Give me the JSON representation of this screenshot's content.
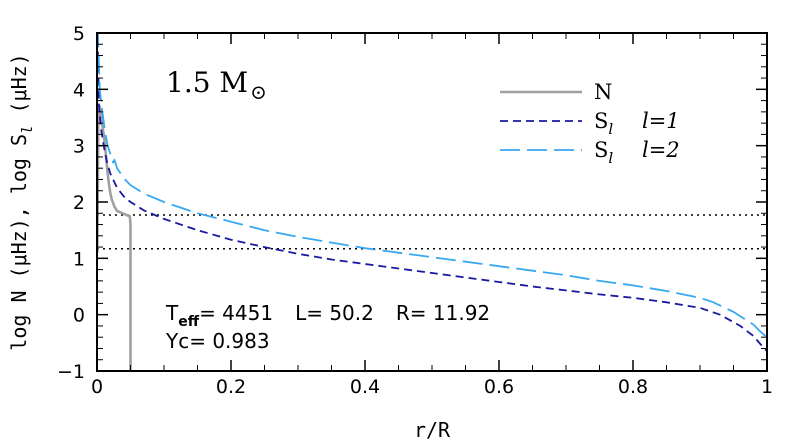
{
  "chart_data": {
    "type": "line",
    "title": "",
    "xlabel": "r/R",
    "ylabel": "log N (μHz), log S",
    "ylabel_subscript": "l",
    "ylabel_suffix": " (μHz)",
    "xlim": [
      0,
      1
    ],
    "ylim": [
      -1,
      5
    ],
    "xticks": [
      0,
      0.2,
      0.4,
      0.6,
      0.8,
      1
    ],
    "xtick_labels": [
      "0",
      "0.2",
      "0.4",
      "0.6",
      "0.8",
      "1"
    ],
    "yticks": [
      -1,
      0,
      1,
      2,
      3,
      4,
      5
    ],
    "ytick_labels": [
      "−1",
      "0",
      "1",
      "2",
      "3",
      "4",
      "5"
    ],
    "grid": false,
    "legend_position": "top-right",
    "mass_label": "1.5  M",
    "mass_symbol": "⊙",
    "stellar_params": {
      "teff_label": "T",
      "teff_sub": "eff",
      "teff_value": "= 4451",
      "lum": "L= 50.2",
      "radius": "R= 11.92",
      "yc": "Yc= 0.983"
    },
    "reference_lines": [
      1.77,
      1.17
    ],
    "series": [
      {
        "name": "N",
        "legend_name": "N",
        "legend_degree": "",
        "color": "#a0a0a0",
        "style": "solid",
        "x": [
          0.0005,
          0.002,
          0.004,
          0.006,
          0.008,
          0.01,
          0.012,
          0.014,
          0.016,
          0.018,
          0.02,
          0.022,
          0.024,
          0.026,
          0.028,
          0.03,
          0.034,
          0.038,
          0.042,
          0.046,
          0.049,
          0.05,
          0.05,
          0.05
        ],
        "y": [
          1.1,
          3.4,
          3.7,
          3.55,
          3.35,
          3.2,
          3.0,
          2.75,
          2.5,
          2.3,
          2.15,
          2.05,
          1.98,
          1.92,
          1.88,
          1.84,
          1.82,
          1.8,
          1.78,
          1.76,
          1.75,
          1.6,
          0.5,
          -1
        ]
      },
      {
        "name": "S_l l=1",
        "legend_name": "S",
        "legend_sub": "l",
        "legend_degree": "l=1",
        "color": "#1a1aa0",
        "style": "dashed",
        "x": [
          0.001,
          0.003,
          0.006,
          0.01,
          0.015,
          0.02,
          0.03,
          0.04,
          0.05,
          0.07,
          0.1,
          0.15,
          0.2,
          0.25,
          0.3,
          0.35,
          0.4,
          0.45,
          0.5,
          0.55,
          0.6,
          0.65,
          0.7,
          0.75,
          0.8,
          0.85,
          0.9,
          0.93,
          0.96,
          0.98,
          0.99,
          1.0
        ],
        "y": [
          4.9,
          3.7,
          3.3,
          3.0,
          2.7,
          2.5,
          2.25,
          2.1,
          2.0,
          1.85,
          1.7,
          1.5,
          1.33,
          1.2,
          1.08,
          0.98,
          0.9,
          0.82,
          0.74,
          0.66,
          0.58,
          0.5,
          0.43,
          0.36,
          0.3,
          0.22,
          0.12,
          0.0,
          -0.2,
          -0.38,
          -0.52,
          -0.65
        ]
      },
      {
        "name": "S_l l=2",
        "legend_name": "S",
        "legend_sub": "l",
        "legend_degree": "l=2",
        "color": "#38a8f0",
        "style": "longdash",
        "x": [
          0.001,
          0.004,
          0.008,
          0.012,
          0.016,
          0.02,
          0.023,
          0.024,
          0.026,
          0.03,
          0.04,
          0.05,
          0.07,
          0.1,
          0.15,
          0.2,
          0.25,
          0.3,
          0.35,
          0.4,
          0.45,
          0.5,
          0.55,
          0.6,
          0.65,
          0.7,
          0.75,
          0.8,
          0.85,
          0.9,
          0.92,
          0.95,
          0.98,
          0.99,
          1.0
        ],
        "y": [
          5.1,
          4.0,
          3.6,
          3.25,
          3.0,
          2.85,
          2.75,
          2.7,
          2.75,
          2.6,
          2.42,
          2.3,
          2.15,
          2.0,
          1.8,
          1.65,
          1.5,
          1.38,
          1.28,
          1.18,
          1.1,
          1.02,
          0.94,
          0.86,
          0.78,
          0.7,
          0.6,
          0.52,
          0.42,
          0.3,
          0.22,
          0.05,
          -0.18,
          -0.3,
          -0.4
        ]
      }
    ]
  }
}
